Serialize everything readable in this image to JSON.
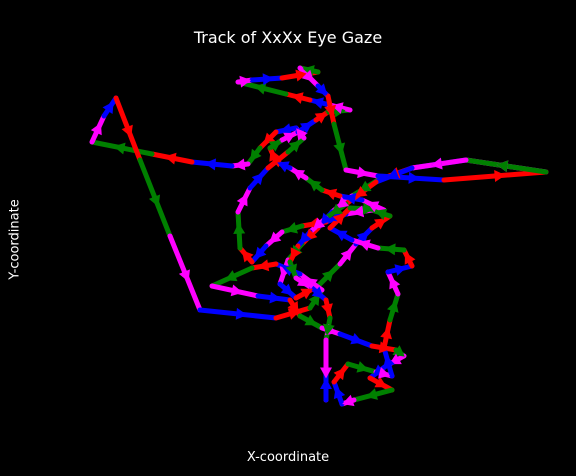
{
  "chart_data": {
    "type": "line",
    "title": "Track of XxXx Eye Gaze",
    "xlabel": "X-coordinate",
    "ylabel": "Y-coordinate",
    "grid": false,
    "axes_visible": false,
    "background": "#000000",
    "colors": [
      "#ff00ff",
      "#0000ff",
      "#ff0000",
      "#008000"
    ],
    "xlim": [
      75,
      560
    ],
    "ylim": [
      418,
      55
    ],
    "x_direction": "left-to-right",
    "y_direction": "top-to-bottom",
    "points": [
      [
        546,
        172
      ],
      [
        466,
        160
      ],
      [
        412,
        168
      ],
      [
        378,
        180
      ],
      [
        352,
        196
      ],
      [
        332,
        212
      ],
      [
        318,
        228
      ],
      [
        302,
        244
      ],
      [
        288,
        260
      ],
      [
        280,
        284
      ],
      [
        296,
        298
      ],
      [
        318,
        286
      ],
      [
        340,
        264
      ],
      [
        356,
        244
      ],
      [
        372,
        228
      ],
      [
        390,
        216
      ],
      [
        372,
        210
      ],
      [
        346,
        214
      ],
      [
        326,
        222
      ],
      [
        302,
        226
      ],
      [
        282,
        232
      ],
      [
        266,
        246
      ],
      [
        252,
        262
      ],
      [
        240,
        248
      ],
      [
        238,
        212
      ],
      [
        250,
        188
      ],
      [
        268,
        168
      ],
      [
        288,
        152
      ],
      [
        304,
        138
      ],
      [
        296,
        128
      ],
      [
        276,
        132
      ],
      [
        260,
        148
      ],
      [
        248,
        164
      ],
      [
        232,
        166
      ],
      [
        192,
        162
      ],
      [
        152,
        154
      ],
      [
        92,
        142
      ],
      [
        104,
        116
      ],
      [
        116,
        98
      ],
      [
        140,
        160
      ],
      [
        170,
        236
      ],
      [
        200,
        310
      ],
      [
        276,
        318
      ],
      [
        310,
        308
      ],
      [
        322,
        290
      ],
      [
        300,
        274
      ],
      [
        276,
        264
      ],
      [
        252,
        268
      ],
      [
        212,
        286
      ],
      [
        258,
        296
      ],
      [
        290,
        300
      ],
      [
        300,
        316
      ],
      [
        322,
        328
      ],
      [
        340,
        334
      ],
      [
        372,
        346
      ],
      [
        396,
        350
      ],
      [
        404,
        356
      ],
      [
        386,
        366
      ],
      [
        370,
        378
      ],
      [
        392,
        390
      ],
      [
        354,
        400
      ],
      [
        342,
        404
      ],
      [
        334,
        382
      ],
      [
        348,
        364
      ],
      [
        376,
        372
      ],
      [
        392,
        376
      ],
      [
        384,
        348
      ],
      [
        390,
        320
      ],
      [
        398,
        294
      ],
      [
        388,
        272
      ],
      [
        412,
        266
      ],
      [
        404,
        250
      ],
      [
        378,
        248
      ],
      [
        352,
        240
      ],
      [
        330,
        228
      ],
      [
        350,
        208
      ],
      [
        384,
        210
      ],
      [
        362,
        200
      ],
      [
        340,
        196
      ],
      [
        322,
        190
      ],
      [
        306,
        178
      ],
      [
        290,
        168
      ],
      [
        276,
        162
      ],
      [
        270,
        148
      ],
      [
        282,
        140
      ],
      [
        298,
        132
      ],
      [
        316,
        120
      ],
      [
        328,
        112
      ],
      [
        350,
        110
      ],
      [
        326,
        104
      ],
      [
        310,
        100
      ],
      [
        286,
        94
      ],
      [
        238,
        82
      ],
      [
        252,
        80
      ],
      [
        282,
        78
      ],
      [
        318,
        72
      ],
      [
        300,
        68
      ],
      [
        318,
        86
      ],
      [
        328,
        96
      ],
      [
        334,
        124
      ],
      [
        346,
        170
      ],
      [
        378,
        176
      ],
      [
        444,
        180
      ],
      [
        546,
        172
      ],
      [
        466,
        160
      ],
      [
        412,
        168
      ],
      [
        376,
        182
      ],
      [
        346,
        204
      ],
      [
        326,
        218
      ],
      [
        310,
        232
      ],
      [
        298,
        246
      ],
      [
        290,
        262
      ],
      [
        296,
        278
      ],
      [
        312,
        288
      ],
      [
        326,
        300
      ],
      [
        330,
        318
      ],
      [
        326,
        340
      ],
      [
        326,
        400
      ],
      [
        326,
        370
      ]
    ]
  }
}
